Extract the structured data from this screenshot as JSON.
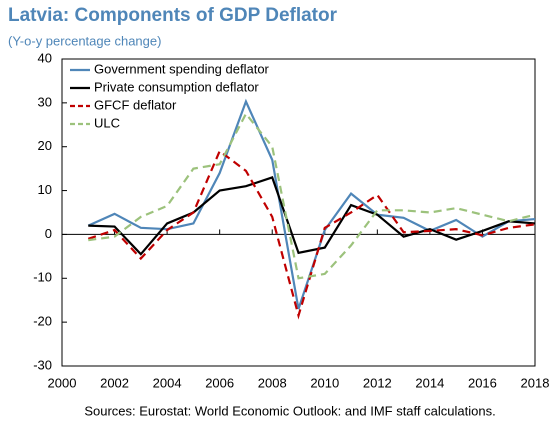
{
  "chart_data": {
    "type": "line",
    "title": "Latvia: Components of GDP Deflator",
    "subtitle": "(Y-o-y percentage change)",
    "source": "Sources: Eurostat: World Economic Outlook: and IMF staff calculations.",
    "x": [
      2001,
      2002,
      2003,
      2004,
      2005,
      2006,
      2007,
      2008,
      2009,
      2010,
      2011,
      2012,
      2013,
      2014,
      2015,
      2016,
      2017,
      2018
    ],
    "series": [
      {
        "name": "Government spending deflator",
        "color": "#4f86b8",
        "dash": false,
        "values": [
          2,
          4.7,
          1.5,
          1.2,
          2.5,
          14,
          30.3,
          17,
          -17,
          1,
          9.3,
          4.5,
          3.8,
          0.8,
          3.3,
          -0.5,
          3,
          3.5
        ]
      },
      {
        "name": "Private consumption deflator",
        "color": "#000000",
        "dash": false,
        "values": [
          2,
          1.8,
          -4.5,
          2.5,
          5,
          10,
          11,
          13,
          -4.2,
          -3,
          6.7,
          4.5,
          -0.5,
          1.2,
          -1.2,
          0.8,
          3,
          2.5
        ]
      },
      {
        "name": "GFCF deflator",
        "color": "#c00000",
        "dash": true,
        "values": [
          -1,
          1,
          -5.5,
          1,
          5,
          19,
          14.5,
          4,
          -18.5,
          1.5,
          5,
          9,
          0.5,
          0.8,
          1.2,
          -0.2,
          1.5,
          2.3
        ]
      },
      {
        "name": "ULC",
        "color": "#9cc27c",
        "dash": true,
        "values": [
          -1.3,
          -0.5,
          4,
          6.5,
          15,
          16,
          27.5,
          20,
          -10,
          -9,
          -2.5,
          5.5,
          5.5,
          5,
          6,
          4.5,
          3,
          4.5
        ]
      }
    ],
    "xlim": [
      2000,
      2018
    ],
    "xticks": [
      2000,
      2002,
      2004,
      2006,
      2008,
      2010,
      2012,
      2014,
      2016,
      2018
    ],
    "ylim": [
      -30,
      40
    ],
    "yticks": [
      -30,
      -20,
      -10,
      0,
      10,
      20,
      30,
      40
    ],
    "legend": "top-left"
  }
}
